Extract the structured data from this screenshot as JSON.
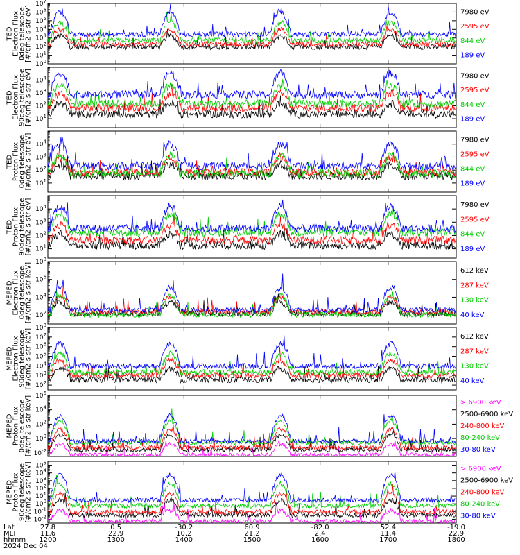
{
  "chart_data": [
    {
      "type": "line",
      "ylabel": [
        "TED",
        "Electron Flux",
        "0deg telescope",
        "[#/cm2-s-str-eV]"
      ],
      "ytick_exponents": [
        0,
        1,
        2,
        3,
        4,
        5,
        6,
        7
      ],
      "ylim_log10": [
        0,
        7
      ],
      "series": [
        {
          "name": "7980 eV",
          "color": "#000000",
          "values": [
            2.1,
            2.0,
            1.9,
            2.0,
            1.9,
            1.9,
            1.9,
            2.0
          ]
        },
        {
          "name": "2595 eV",
          "color": "#ff0000",
          "values": [
            2.4,
            2.2,
            2.2,
            2.3,
            2.2,
            2.2,
            2.3,
            2.4
          ]
        },
        {
          "name": "844 eV",
          "color": "#00cc00",
          "values": [
            2.6,
            2.7,
            2.6,
            2.7,
            2.6,
            2.7,
            2.6,
            3.2
          ]
        },
        {
          "name": "189 eV",
          "color": "#0000ff",
          "values": [
            3.6,
            3.2,
            3.5,
            3.3,
            3.5,
            3.3,
            3.4,
            3.6
          ]
        }
      ]
    },
    {
      "type": "line",
      "ylabel": [
        "TED",
        "Electron Flux",
        "90deg telescope",
        "[#/cm2-s-str-eV]"
      ],
      "ytick_exponents": [
        1,
        2,
        3,
        4
      ],
      "ylim_log10": [
        0.3,
        5
      ],
      "series": [
        {
          "name": "7980 eV",
          "color": "#000000",
          "values": [
            1.4,
            1.3,
            1.3,
            1.4,
            1.3,
            1.3,
            1.3,
            1.4
          ]
        },
        {
          "name": "2595 eV",
          "color": "#ff0000",
          "values": [
            1.8,
            1.7,
            1.8,
            1.9,
            1.8,
            1.9,
            1.8,
            1.9
          ]
        },
        {
          "name": "844 eV",
          "color": "#00cc00",
          "values": [
            2.2,
            2.0,
            2.1,
            2.3,
            2.1,
            2.2,
            2.1,
            2.4
          ]
        },
        {
          "name": "189 eV",
          "color": "#0000ff",
          "values": [
            3.0,
            2.6,
            2.8,
            3.0,
            2.8,
            2.9,
            2.8,
            3.1
          ]
        }
      ]
    },
    {
      "type": "line",
      "ylabel": [
        "TED",
        "Proton Flux",
        "0deg telescope",
        "[#/cm2-s-str-eV]"
      ],
      "ytick_exponents": [
        1,
        2,
        3,
        4
      ],
      "ylim_log10": [
        0.3,
        5
      ],
      "series": [
        {
          "name": "7980 eV",
          "color": "#000000",
          "values": [
            1.6,
            1.5,
            1.6,
            1.5,
            1.6,
            1.5,
            1.6,
            1.5
          ]
        },
        {
          "name": "2595 eV",
          "color": "#ff0000",
          "values": [
            1.9,
            1.8,
            1.9,
            1.8,
            1.9,
            1.8,
            1.9,
            1.8
          ]
        },
        {
          "name": "844 eV",
          "color": "#00cc00",
          "values": [
            1.7,
            1.6,
            1.8,
            1.7,
            1.8,
            1.7,
            1.8,
            1.7
          ]
        },
        {
          "name": "189 eV",
          "color": "#0000ff",
          "values": [
            2.3,
            2.2,
            2.4,
            2.3,
            2.4,
            2.3,
            2.4,
            2.3
          ]
        }
      ]
    },
    {
      "type": "line",
      "ylabel": [
        "TED",
        "Proton Flux",
        "90deg telescope",
        "[#/cm2-s-str-eV]"
      ],
      "ytick_exponents": [
        1,
        2,
        3,
        4
      ],
      "ylim_log10": [
        0.3,
        5
      ],
      "series": [
        {
          "name": "7980 eV",
          "color": "#000000",
          "values": [
            1.3,
            1.2,
            1.3,
            1.2,
            1.3,
            1.2,
            1.3,
            1.2
          ]
        },
        {
          "name": "2595 eV",
          "color": "#ff0000",
          "values": [
            1.7,
            1.6,
            1.7,
            1.6,
            1.7,
            1.6,
            1.7,
            1.6
          ]
        },
        {
          "name": "844 eV",
          "color": "#00cc00",
          "values": [
            2.2,
            2.1,
            2.3,
            2.2,
            2.3,
            2.2,
            2.3,
            2.2
          ]
        },
        {
          "name": "189 eV",
          "color": "#0000ff",
          "values": [
            2.5,
            2.4,
            2.6,
            2.5,
            2.6,
            2.5,
            2.6,
            2.5
          ]
        }
      ]
    },
    {
      "type": "line",
      "ylabel": [
        "MEPED",
        "Electron Flux",
        "0deg telescope",
        "[#/cm2-s-str-keV]"
      ],
      "ytick_exponents": [
        2,
        4,
        6,
        8
      ],
      "ylim_log10": [
        1,
        8
      ],
      "series": [
        {
          "name": "612 keV",
          "color": "#000000",
          "values": [
            2.2,
            2.1,
            2.2,
            2.1,
            2.2,
            2.1,
            2.2,
            2.1
          ]
        },
        {
          "name": "287 keV",
          "color": "#ff0000",
          "values": [
            2.4,
            2.3,
            2.4,
            2.3,
            2.4,
            2.3,
            2.4,
            2.3
          ]
        },
        {
          "name": "130 keV",
          "color": "#00cc00",
          "values": [
            2.1,
            2.0,
            2.1,
            2.0,
            2.1,
            2.0,
            2.1,
            2.0
          ]
        },
        {
          "name": "40 keV",
          "color": "#0000ff",
          "values": [
            2.6,
            2.4,
            2.7,
            2.5,
            2.7,
            2.5,
            2.6,
            2.5
          ]
        }
      ]
    },
    {
      "type": "line",
      "ylabel": [
        "MEPED",
        "Electron Flux",
        "90deg telescope",
        "[#/cm2-s-str-keV]"
      ],
      "ytick_exponents": [
        2,
        3,
        4,
        5,
        6,
        7,
        8
      ],
      "ylim_log10": [
        1.5,
        8
      ],
      "series": [
        {
          "name": "612 keV",
          "color": "#000000",
          "values": [
            2.6,
            2.5,
            2.6,
            2.5,
            2.6,
            2.5,
            2.6,
            2.5
          ]
        },
        {
          "name": "287 keV",
          "color": "#ff0000",
          "values": [
            3.0,
            2.9,
            3.1,
            3.0,
            3.1,
            3.0,
            3.1,
            3.0
          ]
        },
        {
          "name": "130 keV",
          "color": "#00cc00",
          "values": [
            3.3,
            3.2,
            3.4,
            3.3,
            3.4,
            3.3,
            3.4,
            3.3
          ]
        },
        {
          "name": "40 keV",
          "color": "#0000ff",
          "values": [
            4.0,
            3.8,
            4.1,
            3.9,
            4.1,
            3.9,
            4.1,
            3.9
          ]
        }
      ]
    },
    {
      "type": "line",
      "ylabel": [
        "MEPED",
        "Proton Flux",
        "0deg telescope",
        "[#/cm2-s-str-keV]"
      ],
      "ytick_exponents": [
        -2,
        0,
        2,
        4,
        6
      ],
      "ylim_log10": [
        -2.5,
        6
      ],
      "series": [
        {
          "name": "> 6900 keV",
          "color": "#ff00ff",
          "values": [
            -2.3,
            -2.3,
            -2.3,
            -2.3,
            -2.3,
            -2.3,
            -2.3,
            -2.3
          ]
        },
        {
          "name": "2500-6900 keV",
          "color": "#000000",
          "values": [
            -1.5,
            -1.6,
            -1.5,
            -1.6,
            -1.5,
            -1.6,
            -1.5,
            -1.6
          ]
        },
        {
          "name": "240-800 keV",
          "color": "#ff0000",
          "values": [
            -1.2,
            -1.3,
            -1.2,
            -1.3,
            -1.2,
            -1.3,
            -1.2,
            -1.3
          ]
        },
        {
          "name": "80-240 keV",
          "color": "#00cc00",
          "values": [
            -0.5,
            -0.6,
            -0.5,
            -0.6,
            -0.5,
            -0.6,
            -0.5,
            -0.6
          ]
        },
        {
          "name": "30-80 keV",
          "color": "#0000ff",
          "values": [
            -0.3,
            -0.4,
            -0.3,
            -0.4,
            -0.3,
            -0.4,
            -0.3,
            -0.4
          ]
        }
      ]
    },
    {
      "type": "line",
      "ylabel": [
        "MEPED",
        "Proton Flux",
        "90deg telescope",
        "[#/cm2-s-str-keV]"
      ],
      "ytick_exponents": [
        -2,
        -1,
        0,
        1,
        2,
        3,
        4,
        5
      ],
      "ylim_log10": [
        -2.5,
        5.5
      ],
      "series": [
        {
          "name": "> 6900 keV",
          "color": "#ff00ff",
          "values": [
            -2.3,
            -2.3,
            -2.3,
            -2.3,
            -2.3,
            -2.3,
            -2.3,
            -2.3
          ]
        },
        {
          "name": "2500-6900 keV",
          "color": "#000000",
          "values": [
            -1.4,
            -1.5,
            -1.4,
            -1.5,
            -1.4,
            -1.5,
            -1.4,
            -1.5
          ]
        },
        {
          "name": "240-800 keV",
          "color": "#ff0000",
          "values": [
            -1.0,
            -1.1,
            -1.0,
            -1.1,
            -1.0,
            -1.1,
            -1.0,
            -1.1
          ]
        },
        {
          "name": "80-240 keV",
          "color": "#00cc00",
          "values": [
            -0.2,
            -0.3,
            -0.2,
            -0.3,
            -0.2,
            -0.3,
            -0.2,
            -0.3
          ]
        },
        {
          "name": "30-80 keV",
          "color": "#0000ff",
          "values": [
            0.5,
            0.4,
            0.5,
            0.4,
            0.5,
            0.4,
            0.5,
            0.4
          ]
        }
      ]
    }
  ],
  "x_axis": {
    "time_start": "1200",
    "time_end": "1800",
    "row_labels": [
      "Lat",
      "MLT",
      "hhmm",
      "2024 Dec 04"
    ],
    "ticks": [
      {
        "lat": "27.8",
        "mlt": "11.6",
        "hhmm": "1200",
        "pos": 0
      },
      {
        "lat": "0.5",
        "mlt": "22.9",
        "hhmm": "1300",
        "pos": 1
      },
      {
        "lat": "-30.2",
        "mlt": "10.2",
        "hhmm": "1400",
        "pos": 2
      },
      {
        "lat": "60.9",
        "mlt": "21.2",
        "hhmm": "1500",
        "pos": 3
      },
      {
        "lat": "-82.0",
        "mlt": "2.4",
        "hhmm": "1600",
        "pos": 4
      },
      {
        "lat": "52.4",
        "mlt": "11.4",
        "hhmm": "1700",
        "pos": 5
      },
      {
        "lat": "-19.0",
        "mlt": "22.9",
        "hhmm": "1800",
        "pos": 6
      }
    ]
  }
}
